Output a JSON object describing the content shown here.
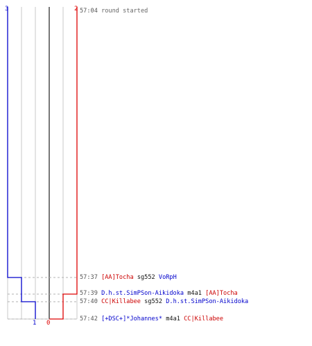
{
  "teams": {
    "blue": {
      "color": "#0000cc",
      "start_score": "3",
      "end_score": "1"
    },
    "red": {
      "color": "#dd0000",
      "start_score": "2",
      "end_score": "0"
    }
  },
  "grid": {
    "color": "#c8c8c8",
    "center_color": "#777777"
  },
  "events": [
    {
      "time": "57:04",
      "text": "round started"
    },
    {
      "time": "57:37",
      "killer": "[AA]Tocha",
      "killer_team": "red",
      "weapon": "sg552",
      "victim": "VoRpH",
      "victim_team": "blue"
    },
    {
      "time": "57:39",
      "killer": "D.h.st.SimPSon-Aikidoka",
      "killer_team": "blue",
      "weapon": "m4a1",
      "victim": "[AA]Tocha",
      "victim_team": "red"
    },
    {
      "time": "57:40",
      "killer": "CC|Killabee",
      "killer_team": "red",
      "weapon": "sg552",
      "victim": "D.h.st.SimPSon-Aikidoka",
      "victim_team": "blue"
    },
    {
      "time": "57:42",
      "killer": "[+DSC+]*Johannes*",
      "killer_team": "blue",
      "weapon": "m4a1",
      "victim": "CC|Killabee",
      "victim_team": "red"
    }
  ]
}
